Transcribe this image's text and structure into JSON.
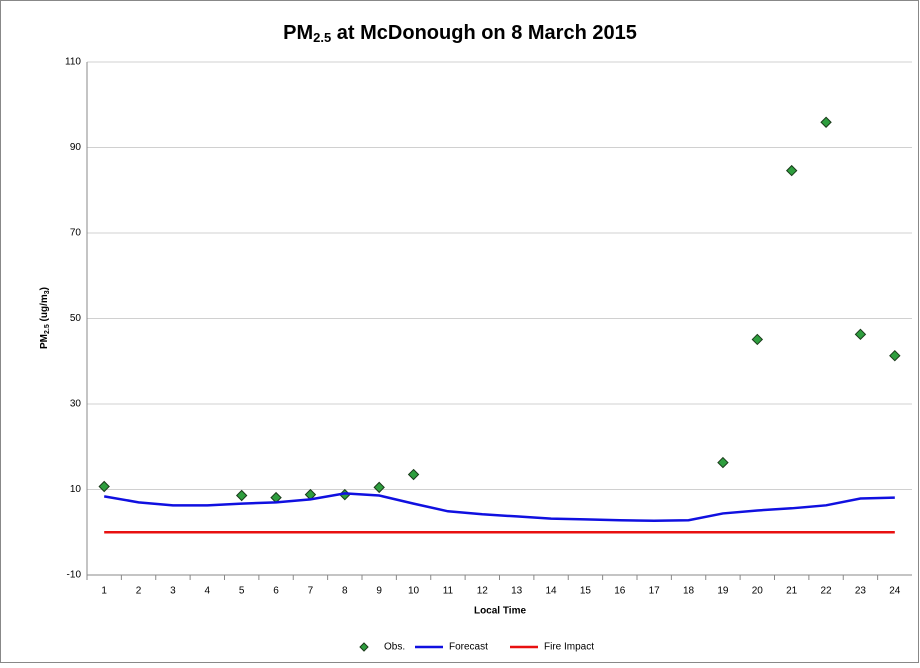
{
  "chart_data": {
    "type": "line",
    "title": [
      "PM",
      "2.5",
      " at McDonough on 8 March 2015"
    ],
    "y_label": [
      "PM",
      "2.5",
      " (ug/m",
      "3",
      ")"
    ],
    "x_label": "Local Time",
    "categories": [
      1,
      2,
      3,
      4,
      5,
      6,
      7,
      8,
      9,
      10,
      11,
      12,
      13,
      14,
      15,
      16,
      17,
      18,
      19,
      20,
      21,
      22,
      23,
      24
    ],
    "ylim": [
      -10,
      110
    ],
    "yticks": [
      -10,
      10,
      30,
      50,
      70,
      90,
      110
    ],
    "grid": true,
    "legend": "bottom",
    "series": [
      {
        "name": "Obs.",
        "color": "#2e9e3e",
        "marker": "diamond",
        "values": [
          10.7,
          null,
          null,
          null,
          8.6,
          8.1,
          8.8,
          8.8,
          10.5,
          13.5,
          null,
          null,
          null,
          null,
          null,
          null,
          null,
          null,
          16.3,
          45.1,
          84.6,
          95.9,
          46.3,
          41.3
        ]
      },
      {
        "name": "Forecast",
        "color": "#1010e0",
        "values": [
          8.4,
          7.0,
          6.3,
          6.3,
          6.7,
          7.0,
          7.7,
          9.1,
          8.6,
          6.7,
          4.9,
          4.2,
          3.7,
          3.2,
          3.0,
          2.8,
          2.7,
          2.8,
          4.4,
          5.1,
          5.6,
          6.3,
          7.9,
          8.1
        ]
      },
      {
        "name": "Fire Impact",
        "color": "#e81010",
        "values": [
          0,
          0,
          0,
          0,
          0,
          0,
          0,
          0,
          0,
          0,
          0,
          0,
          0,
          0,
          0,
          0,
          0,
          0,
          0,
          0,
          0,
          0,
          0,
          0
        ]
      }
    ]
  }
}
